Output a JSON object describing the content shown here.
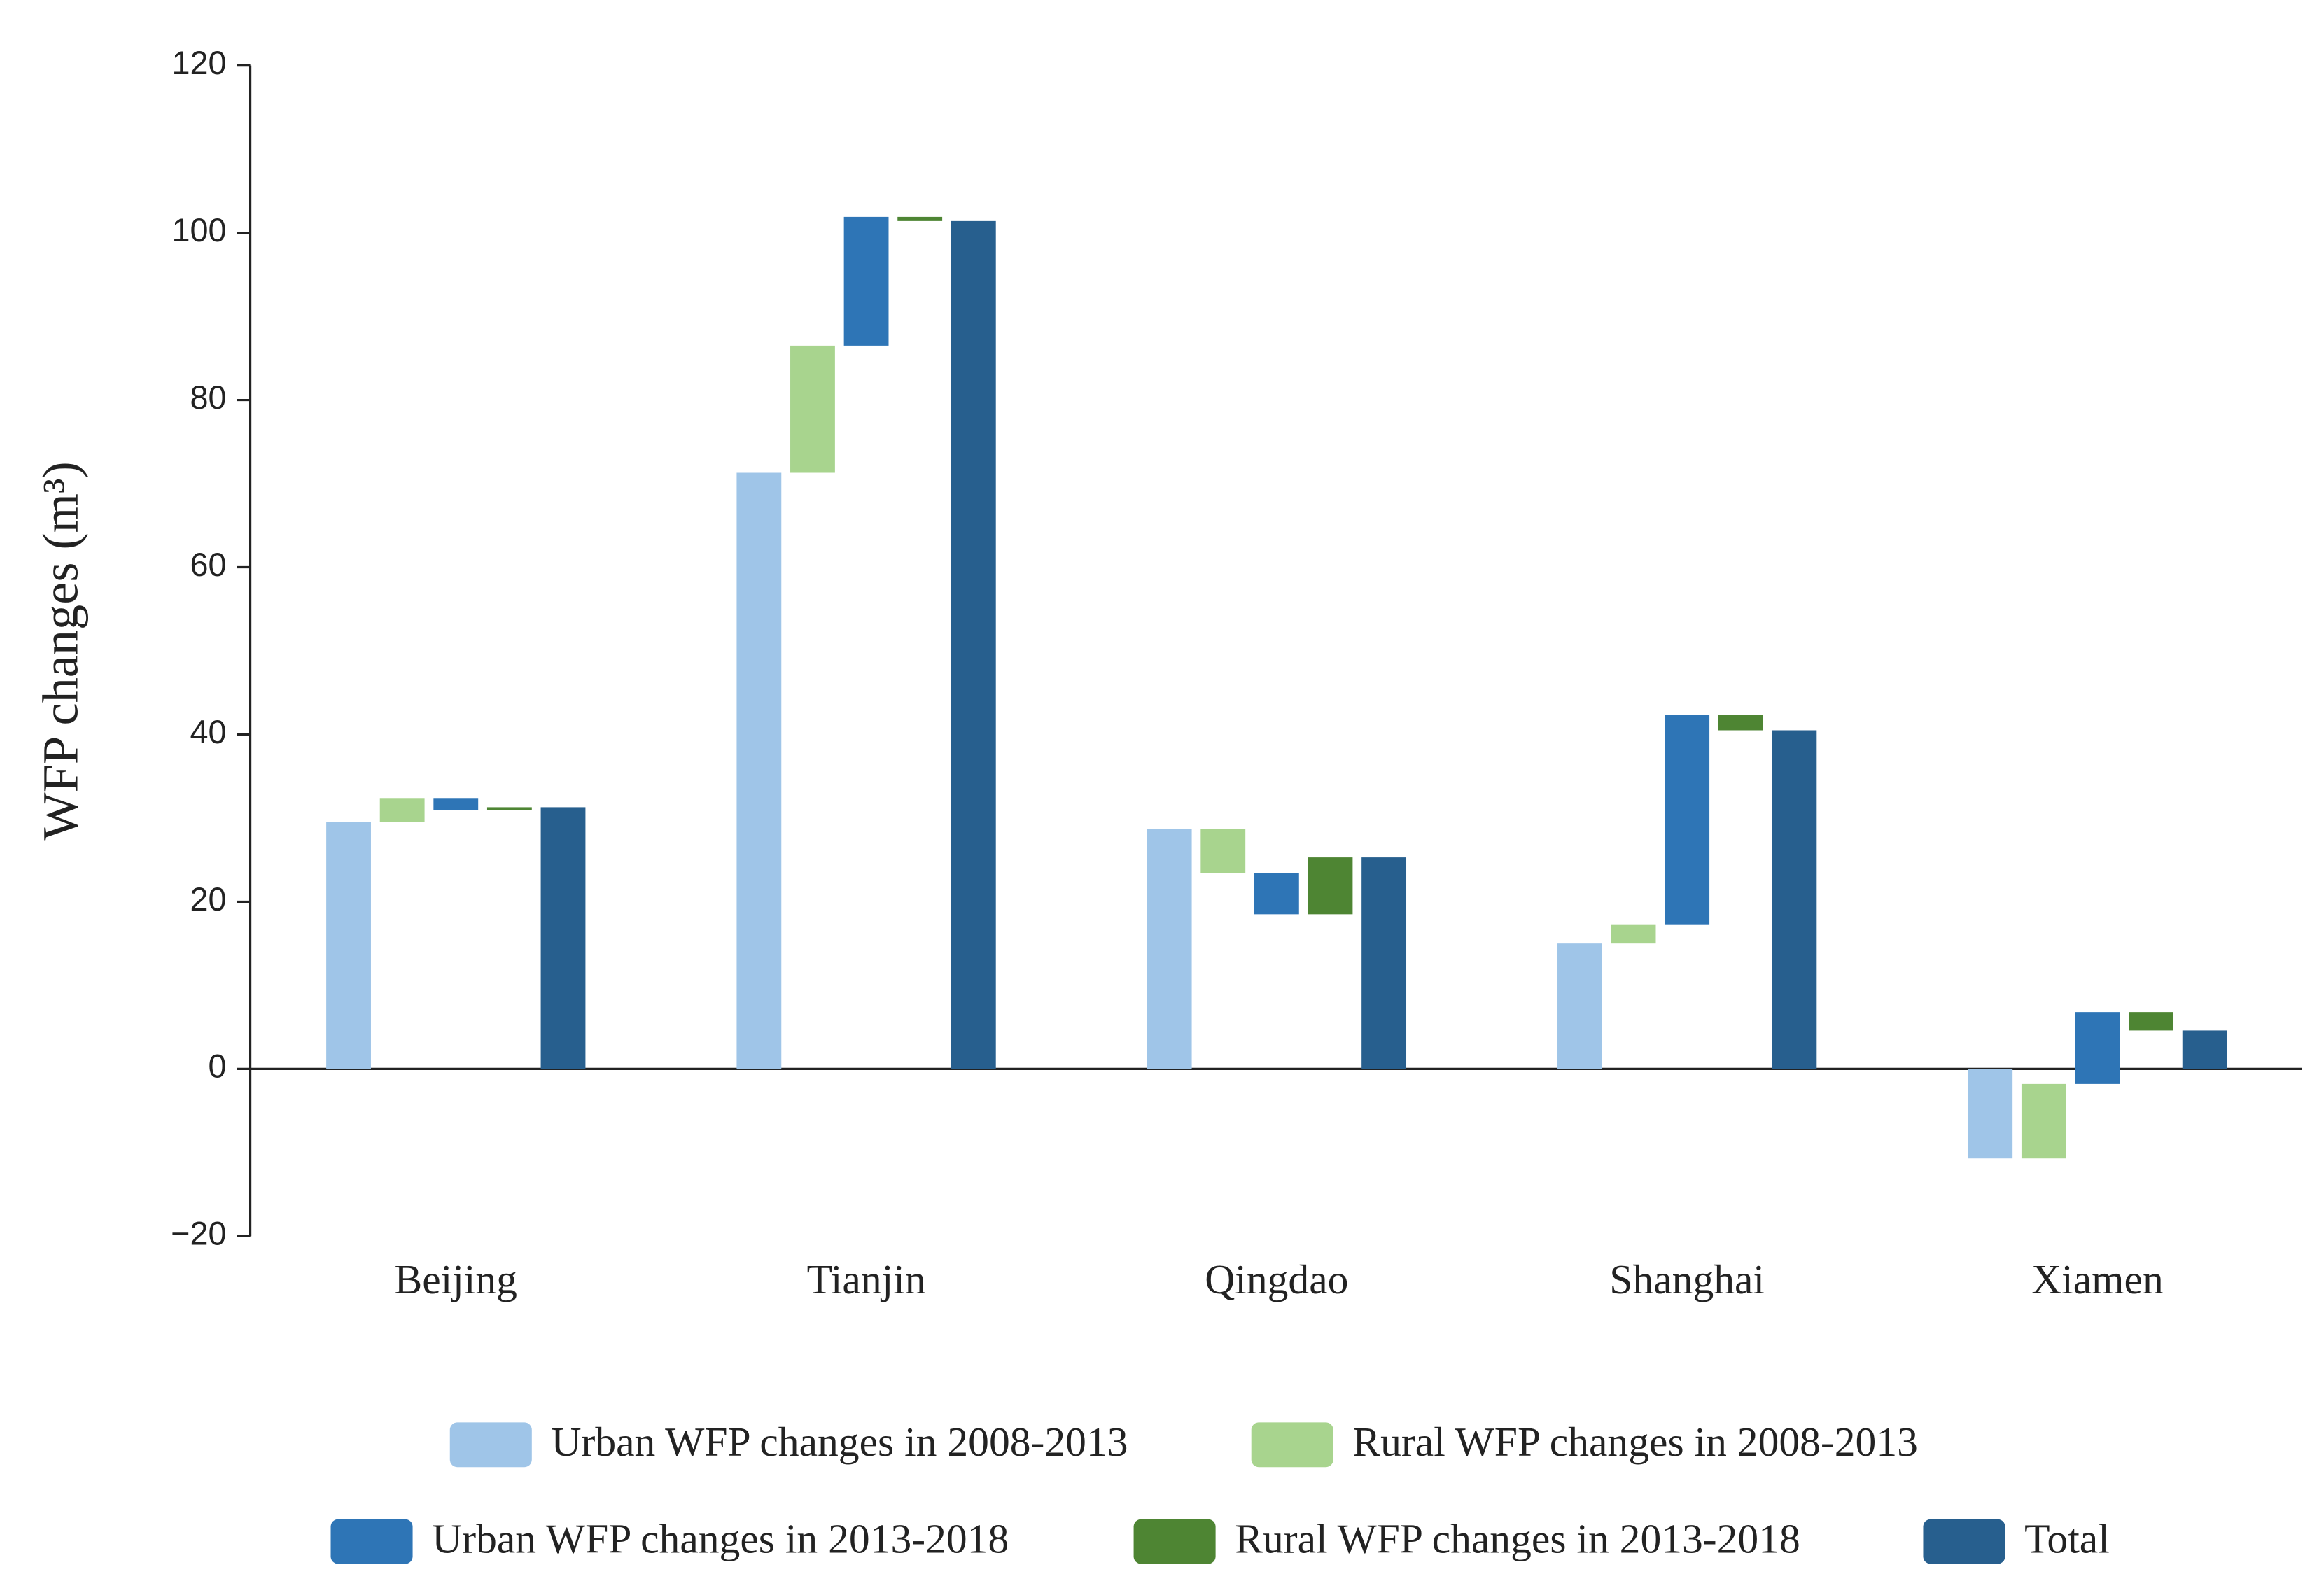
{
  "chart_data": {
    "type": "waterfall",
    "y_label": "WFP changes (m³)",
    "categories": [
      "Beijing",
      "Tianjin",
      "Qingdao",
      "Shanghai",
      "Xiamen"
    ],
    "series": [
      {
        "name": "Urban WFP changes in 2008-2013",
        "color": "#9fc5e8",
        "values": [
          29.5,
          71.3,
          28.7,
          15.0,
          -10.7
        ]
      },
      {
        "name": "Rural WFP changes in 2008-2013",
        "color": "#a8d48e",
        "values": [
          2.9,
          15.2,
          -5.3,
          2.3,
          8.9
        ]
      },
      {
        "name": "Urban WFP changes in 2013-2018",
        "color": "#2e75b6",
        "values": [
          -1.4,
          15.4,
          -4.9,
          25.0,
          8.6
        ]
      },
      {
        "name": "Rural WFP changes in 2013-2018",
        "color": "#4e8533",
        "values": [
          0.3,
          -0.5,
          6.8,
          -1.8,
          -2.2
        ]
      },
      {
        "name": "Total",
        "color": "#275f8e",
        "values": [
          31.3,
          101.4,
          25.3,
          40.5,
          4.6
        ]
      }
    ],
    "ylim": [
      -20,
      120
    ],
    "yticks": [
      {
        "value": -20,
        "label": "−20"
      },
      0,
      20,
      40,
      60,
      80,
      100,
      120
    ]
  }
}
